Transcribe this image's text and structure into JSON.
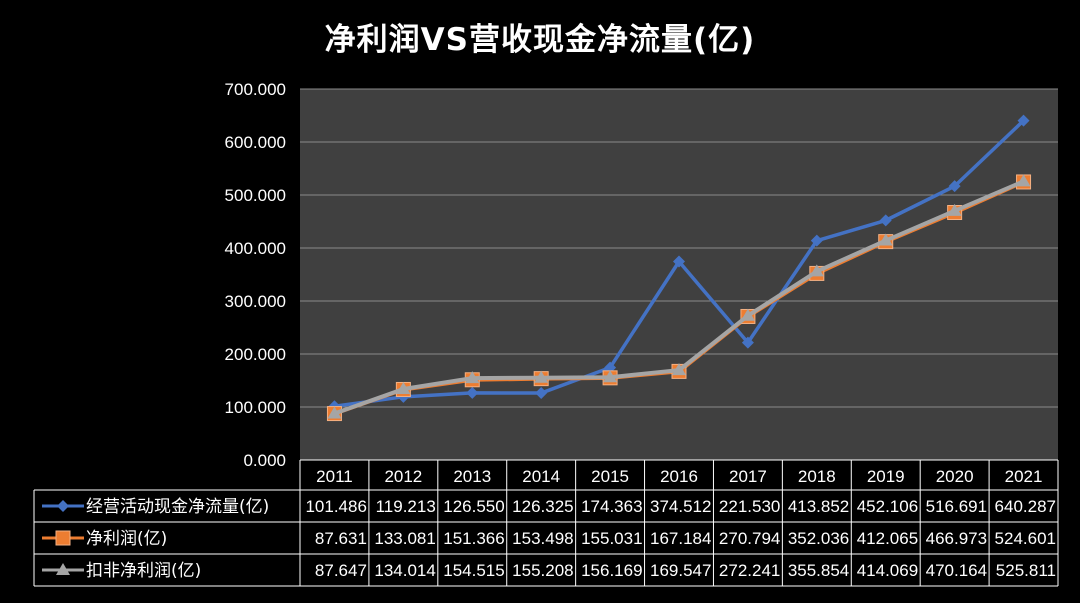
{
  "chart_data": {
    "type": "line",
    "title": "净利润VS营收现金净流量(亿)",
    "categories": [
      "2011",
      "2012",
      "2013",
      "2014",
      "2015",
      "2016",
      "2017",
      "2018",
      "2019",
      "2020",
      "2021"
    ],
    "ylim": [
      0,
      700
    ],
    "yticks": [
      "0.000",
      "100.000",
      "200.000",
      "300.000",
      "400.000",
      "500.000",
      "600.000",
      "700.000"
    ],
    "grid": true,
    "legend": "data-table",
    "series": [
      {
        "name": "经营活动现金净流量(亿)",
        "color": "#4472C4",
        "marker": "diamond",
        "values": [
          101.486,
          119.213,
          126.55,
          126.325,
          174.363,
          374.512,
          221.53,
          413.852,
          452.106,
          516.691,
          640.287
        ],
        "labels": [
          "101.486",
          "119.213",
          "126.550",
          "126.325",
          "174.363",
          "374.512",
          "221.530",
          "413.852",
          "452.106",
          "516.691",
          "640.287"
        ]
      },
      {
        "name": "净利润(亿)",
        "color": "#ED7D31",
        "marker": "square",
        "values": [
          87.631,
          133.081,
          151.366,
          153.498,
          155.031,
          167.184,
          270.794,
          352.036,
          412.065,
          466.973,
          524.601
        ],
        "labels": [
          "87.631",
          "133.081",
          "151.366",
          "153.498",
          "155.031",
          "167.184",
          "270.794",
          "352.036",
          "412.065",
          "466.973",
          "524.601"
        ]
      },
      {
        "name": "扣非净利润(亿)",
        "color": "#A5A5A5",
        "marker": "triangle",
        "values": [
          87.647,
          134.014,
          154.515,
          155.208,
          156.169,
          169.547,
          272.241,
          355.854,
          414.069,
          470.164,
          525.811
        ],
        "labels": [
          "87.647",
          "134.014",
          "154.515",
          "155.208",
          "156.169",
          "169.547",
          "272.241",
          "355.854",
          "414.069",
          "470.164",
          "525.811"
        ]
      }
    ]
  }
}
